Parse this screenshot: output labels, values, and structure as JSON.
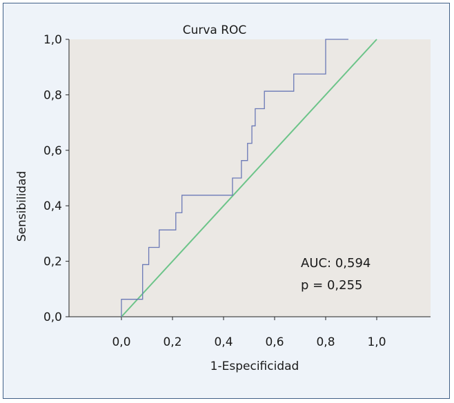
{
  "chart_data": {
    "type": "line",
    "title": "Curva ROC",
    "xlabel": "1-Especificidad",
    "ylabel": "Sensibilidad",
    "xlim": [
      -0.15,
      1.18
    ],
    "ylim": [
      0.0,
      1.0
    ],
    "xticks": [
      "0,0",
      "0,2",
      "0,4",
      "0,6",
      "0,8",
      "1,0"
    ],
    "xtick_values": [
      0.0,
      0.2,
      0.4,
      0.6,
      0.8,
      1.0
    ],
    "yticks": [
      "0,0",
      "0,2",
      "0,4",
      "0,6",
      "0,8",
      "1,0"
    ],
    "ytick_values": [
      0.0,
      0.2,
      0.4,
      0.6,
      0.8,
      1.0
    ],
    "grid": false,
    "series": [
      {
        "color": "#6a78b6",
        "step": true,
        "x": [
          0.0,
          0.0,
          0.083,
          0.083,
          0.107,
          0.107,
          0.148,
          0.148,
          0.213,
          0.213,
          0.237,
          0.237,
          0.435,
          0.435,
          0.47,
          0.47,
          0.494,
          0.494,
          0.511,
          0.511,
          0.524,
          0.524,
          0.56,
          0.56,
          0.675,
          0.675,
          0.8,
          0.8,
          0.889,
          0.889
        ],
        "y": [
          0.0,
          0.063,
          0.063,
          0.188,
          0.188,
          0.25,
          0.25,
          0.313,
          0.313,
          0.375,
          0.375,
          0.438,
          0.438,
          0.5,
          0.5,
          0.563,
          0.563,
          0.625,
          0.625,
          0.688,
          0.688,
          0.75,
          0.75,
          0.813,
          0.813,
          0.875,
          0.875,
          1.0,
          1.0,
          1.0
        ]
      },
      {
        "color": "#6cc489",
        "x": [
          0.0,
          1.0
        ],
        "y": [
          0.0,
          1.0
        ]
      }
    ],
    "annotations": [
      "AUC: 0,594",
      "p = 0,255"
    ]
  },
  "colors": {
    "frame_border": "#3f5f86",
    "frame_bg": "#eef3f9",
    "plot_bg": "#ebe8e4",
    "roc_line": "#6a78b6",
    "reference_line": "#6cc489"
  }
}
